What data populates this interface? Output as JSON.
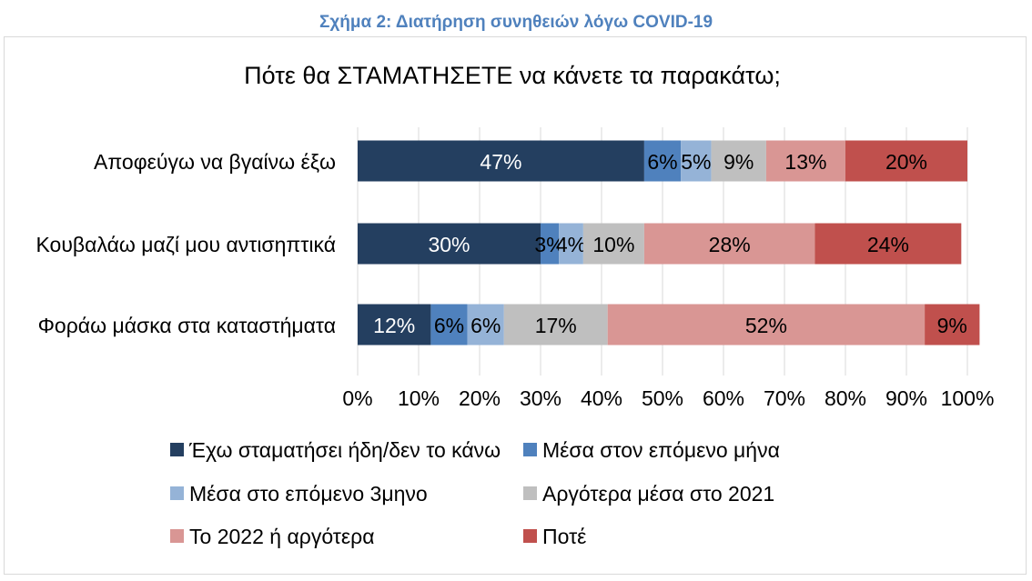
{
  "caption": "Σχήμα 2: Διατήρηση συνηθειών λόγω COVID-19",
  "chart_data": {
    "type": "bar",
    "orientation": "horizontal",
    "stacked": "percent",
    "title": "Πότε θα ΣΤΑΜΑΤΗΣΕΤΕ να κάνετε τα παρακάτω;",
    "categories": [
      "Αποφεύγω να βγαίνω έξω",
      "Κουβαλάω μαζί μου αντισηπτικά",
      "Φοράω μάσκα στα καταστήματα"
    ],
    "series": [
      {
        "name": "Έχω σταματήσει ήδη/δεν το κάνω",
        "color": "#243f60",
        "values": [
          47,
          30,
          12
        ],
        "labels": [
          "47%",
          "30%",
          "12%"
        ]
      },
      {
        "name": "Μέσα στον επόμενο μήνα",
        "color": "#4f81bd",
        "values": [
          6,
          3,
          6
        ],
        "labels": [
          "6%",
          "3%",
          "6%"
        ]
      },
      {
        "name": "Μέσα στο επόμενο 3μηνο",
        "color": "#95b3d7",
        "values": [
          5,
          4,
          6
        ],
        "labels": [
          "5%",
          "4%",
          "6%"
        ]
      },
      {
        "name": "Αργότερα μέσα στο 2021",
        "color": "#bfbfbf",
        "values": [
          9,
          10,
          17
        ],
        "labels": [
          "9%",
          "10%",
          "17%"
        ]
      },
      {
        "name": "Το 2022 ή αργότερα",
        "color": "#d99694",
        "values": [
          13,
          28,
          52
        ],
        "labels": [
          "13%",
          "28%",
          "52%"
        ]
      },
      {
        "name": "Ποτέ",
        "color": "#c0504d",
        "values": [
          20,
          24,
          9
        ],
        "labels": [
          "20%",
          "24%",
          "9%"
        ]
      }
    ],
    "xlim": [
      0,
      100
    ],
    "xticks": [
      "0%",
      "10%",
      "20%",
      "30%",
      "40%",
      "50%",
      "60%",
      "70%",
      "80%",
      "90%",
      "100%"
    ],
    "grid": "vertical",
    "legend_position": "bottom"
  }
}
